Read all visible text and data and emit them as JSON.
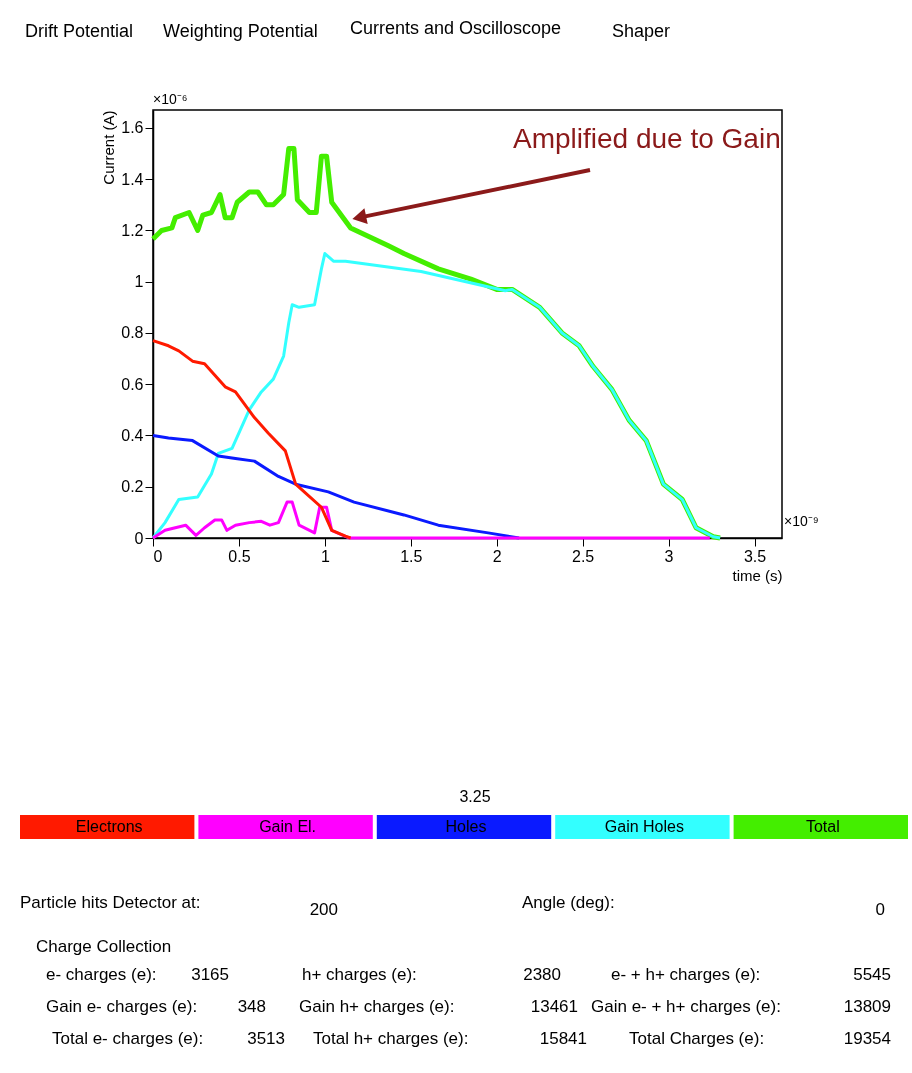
{
  "chart_data": {
    "type": "line",
    "xlabel": "time (s)",
    "ylabel": "Current (A)",
    "xlim": [
      0,
      3.66
    ],
    "xticks": [
      0,
      0.5,
      1,
      1.5,
      2,
      2.5,
      3,
      3.5
    ],
    "ylim": [
      0,
      1.67
    ],
    "yticks": [
      0,
      0.2,
      0.4,
      0.6,
      0.8,
      1,
      1.2,
      1.4,
      1.6
    ],
    "grid": false,
    "legend": "bottom",
    "marker": "none",
    "line_style": "solid",
    "series": [
      {
        "name": "Electrons",
        "color": "#ff1a00",
        "x": [
          0,
          0.09,
          0.15,
          0.23,
          0.3,
          0.42,
          0.48,
          0.59,
          0.67,
          0.77,
          0.83,
          0.88,
          0.98,
          1.04,
          1.12,
          1.15
        ],
        "values": [
          0.77,
          0.75,
          0.73,
          0.69,
          0.68,
          0.59,
          0.57,
          0.47,
          0.41,
          0.34,
          0.21,
          0.18,
          0.12,
          0.03,
          0.007,
          0
        ]
      },
      {
        "name": "Gain El.",
        "color": "#ff00ff",
        "x": [
          0,
          0.07,
          0.19,
          0.25,
          0.3,
          0.36,
          0.4,
          0.43,
          0.48,
          0.56,
          0.63,
          0.68,
          0.73,
          0.78,
          0.81,
          0.85,
          0.94,
          0.97,
          1.01,
          1.04,
          1.14,
          3.24
        ],
        "values": [
          0,
          0.03,
          0.05,
          0.01,
          0.04,
          0.07,
          0.07,
          0.03,
          0.05,
          0.06,
          0.065,
          0.05,
          0.06,
          0.14,
          0.14,
          0.05,
          0.02,
          0.12,
          0.12,
          0.03,
          0,
          0
        ]
      },
      {
        "name": "Holes",
        "color": "#0a1aff",
        "x": [
          0,
          0.09,
          0.23,
          0.38,
          0.48,
          0.59,
          0.73,
          0.83,
          1.02,
          1.17,
          1.46,
          1.66,
          1.95,
          2.13
        ],
        "values": [
          0.4,
          0.39,
          0.38,
          0.32,
          0.31,
          0.3,
          0.24,
          0.21,
          0.18,
          0.14,
          0.09,
          0.05,
          0.02,
          0
        ]
      },
      {
        "name": "Gain Holes",
        "color": "#33ffff",
        "x": [
          0,
          0.07,
          0.15,
          0.26,
          0.34,
          0.38,
          0.46,
          0.56,
          0.63,
          0.7,
          0.76,
          0.79,
          0.81,
          0.85,
          0.94,
          0.98,
          1.0,
          1.05,
          1.12,
          1.56,
          2.05,
          2.09,
          2.25,
          2.38,
          2.48,
          2.56,
          2.67,
          2.77,
          2.87,
          2.97,
          3.08,
          3.16,
          3.26,
          3.3
        ],
        "values": [
          0,
          0.06,
          0.15,
          0.16,
          0.25,
          0.33,
          0.35,
          0.5,
          0.57,
          0.62,
          0.71,
          0.84,
          0.91,
          0.9,
          0.91,
          1.05,
          1.11,
          1.08,
          1.08,
          1.04,
          0.965,
          0.97,
          0.9,
          0.8,
          0.75,
          0.67,
          0.58,
          0.46,
          0.38,
          0.21,
          0.15,
          0.04,
          0.005,
          0
        ]
      },
      {
        "name": "Total",
        "color": "#44ee00",
        "x": [
          0,
          0.05,
          0.11,
          0.13,
          0.21,
          0.26,
          0.29,
          0.34,
          0.39,
          0.42,
          0.46,
          0.49,
          0.56,
          0.61,
          0.66,
          0.7,
          0.76,
          0.79,
          0.82,
          0.84,
          0.91,
          0.95,
          0.98,
          1.01,
          1.04,
          1.15,
          1.37,
          1.46,
          1.66,
          1.85,
          2.0,
          2.09,
          2.25,
          2.38,
          2.48,
          2.56,
          2.67,
          2.77,
          2.87,
          2.97,
          3.08,
          3.16,
          3.26,
          3.3
        ],
        "values": [
          1.167,
          1.2,
          1.21,
          1.25,
          1.27,
          1.2,
          1.26,
          1.27,
          1.34,
          1.25,
          1.25,
          1.31,
          1.35,
          1.35,
          1.3,
          1.3,
          1.34,
          1.52,
          1.52,
          1.32,
          1.27,
          1.27,
          1.49,
          1.49,
          1.31,
          1.21,
          1.14,
          1.11,
          1.05,
          1.01,
          0.97,
          0.97,
          0.9,
          0.8,
          0.75,
          0.67,
          0.58,
          0.46,
          0.38,
          0.21,
          0.15,
          0.04,
          0.005,
          0
        ]
      }
    ],
    "annotations": [
      {
        "text": "Amplified due to Gain",
        "x": 1.2,
        "y": 1.25
      },
      "Drift Potential",
      "Weighting Potential",
      "Currents and Oscilloscope",
      "Shaper",
      "×10⁻⁶",
      "×10⁻⁹",
      "3.25",
      "Particle hits Detector at:",
      "200",
      "Angle (deg):",
      "0",
      "Charge Collection",
      "e- charges (e):",
      "3165",
      "h+ charges (e):",
      "2380",
      "e- + h+ charges (e):",
      "5545",
      "Gain e- charges (e):",
      "348",
      "Gain h+ charges (e):",
      "13461",
      "Gain e- + h+ charges (e):",
      "13809",
      "Total e- charges (e):",
      "3513",
      "Total h+ charges (e):",
      "15841",
      "Total Charges (e):",
      "19354"
    ]
  }
}
